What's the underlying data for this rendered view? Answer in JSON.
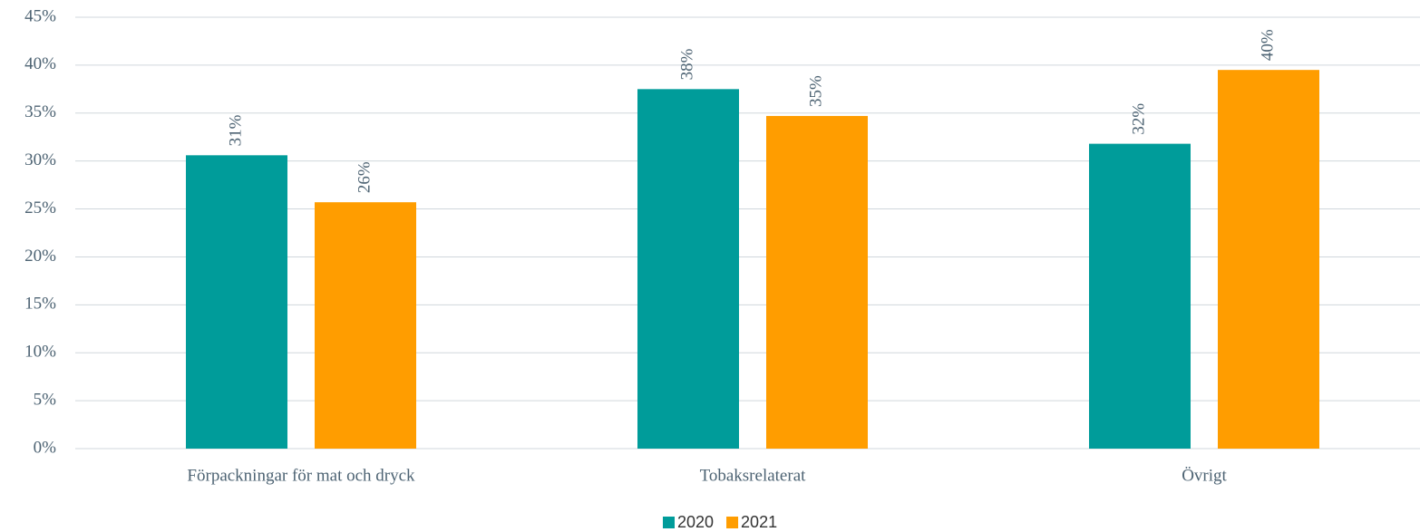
{
  "chart_data": {
    "type": "bar",
    "categories": [
      "Förpackningar för mat och dryck",
      "Tobaksrelaterat",
      "Övrigt"
    ],
    "series": [
      {
        "name": "2020",
        "color": "#009c9a",
        "values": [
          30.6,
          37.5,
          31.8
        ],
        "value_labels": [
          "31%",
          "38%",
          "32%"
        ]
      },
      {
        "name": "2021",
        "color": "#ff9d00",
        "values": [
          25.7,
          34.7,
          39.5
        ],
        "value_labels": [
          "26%",
          "35%",
          "40%"
        ]
      }
    ],
    "ylim": [
      0,
      45
    ],
    "yticks": [
      {
        "value": 0,
        "label": "0%"
      },
      {
        "value": 5,
        "label": "5%"
      },
      {
        "value": 10,
        "label": "10%"
      },
      {
        "value": 15,
        "label": "15%"
      },
      {
        "value": 20,
        "label": "20%"
      },
      {
        "value": 25,
        "label": "25%"
      },
      {
        "value": 30,
        "label": "30%"
      },
      {
        "value": 35,
        "label": "35%"
      },
      {
        "value": 40,
        "label": "40%"
      },
      {
        "value": 45,
        "label": "45%"
      }
    ],
    "grid": true,
    "legend": "bottom"
  }
}
